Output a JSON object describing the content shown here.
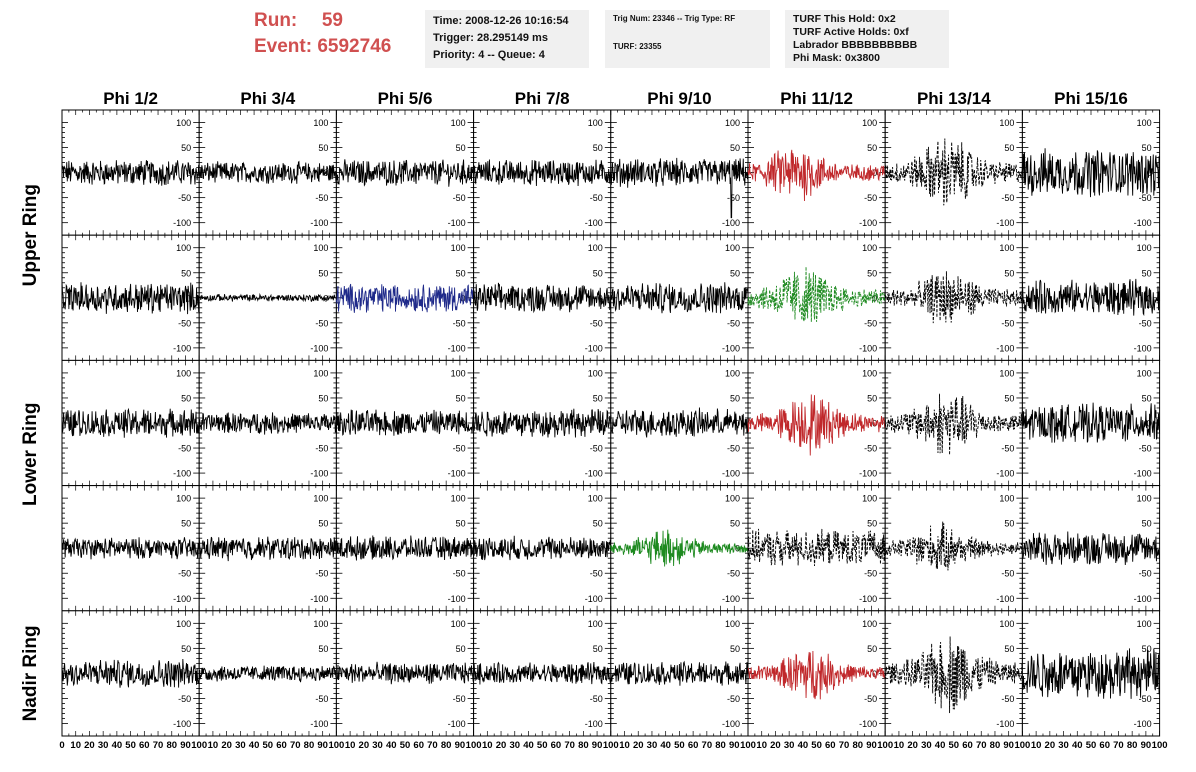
{
  "header": {
    "run_label": "Run:",
    "run_value": "59",
    "event_label": "Event:",
    "event_value": "6592746",
    "time": "Time: 2008-12-26 10:16:54",
    "trigger": "Trigger: 28.295149 ms",
    "priority": "Priority: 4 -- Queue: 4",
    "trig_num": "Trig Num: 23346 -- Trig Type: RF",
    "turf": "TURF: 23355",
    "turf_this_hold": "TURF This Hold: 0x2",
    "turf_active_holds": "TURF Active Holds: 0xf",
    "labrador": "Labrador BBBBBBBBBB",
    "phi_mask": "Phi Mask: 0x3800"
  },
  "chart_data": {
    "type": "line",
    "columns": [
      "Phi 1/2",
      "Phi 3/4",
      "Phi 5/6",
      "Phi 7/8",
      "Phi 9/10",
      "Phi 11/12",
      "Phi 13/14",
      "Phi 15/16"
    ],
    "rings": [
      "Upper Ring",
      "Lower Ring",
      "Nadir Ring"
    ],
    "xlim": [
      0,
      100
    ],
    "ylim": [
      -125,
      125
    ],
    "x_ticks": [
      "0",
      "10",
      "20",
      "30",
      "40",
      "50",
      "60",
      "70",
      "80",
      "90",
      "100"
    ],
    "y_ticks": [
      "100",
      "50",
      "0",
      "-50",
      "-100"
    ],
    "colors": {
      "default": "#000000",
      "red": "#c0282b",
      "blue": "#1f2a8a",
      "green": "#1e8a20"
    },
    "panels": [
      [
        {
          "amp": 22,
          "color": "default",
          "dashed": false
        },
        {
          "amp": 18,
          "color": "default",
          "dashed": false
        },
        {
          "amp": 22,
          "color": "default",
          "dashed": false
        },
        {
          "amp": 22,
          "color": "default",
          "dashed": false
        },
        {
          "amp": 24,
          "color": "default",
          "dashed": false,
          "spike": [
            88,
            -90
          ]
        },
        {
          "amp": 40,
          "color": "red",
          "dashed": false,
          "burst": 35
        },
        {
          "amp": 50,
          "color": "default",
          "dashed": true,
          "burst": 45
        },
        {
          "amp": 40,
          "color": "default",
          "dashed": false
        }
      ],
      [
        {
          "amp": 26,
          "color": "default",
          "dashed": false
        },
        {
          "amp": 6,
          "color": "default",
          "dashed": false
        },
        {
          "amp": 24,
          "color": "blue",
          "dashed": false
        },
        {
          "amp": 24,
          "color": "default",
          "dashed": false
        },
        {
          "amp": 26,
          "color": "default",
          "dashed": false
        },
        {
          "amp": 45,
          "color": "green",
          "dashed": true,
          "burst": 40
        },
        {
          "amp": 40,
          "color": "default",
          "dashed": true,
          "burst": 45
        },
        {
          "amp": 30,
          "color": "default",
          "dashed": false
        }
      ],
      [
        {
          "amp": 24,
          "color": "default",
          "dashed": false
        },
        {
          "amp": 18,
          "color": "default",
          "dashed": false
        },
        {
          "amp": 22,
          "color": "default",
          "dashed": false
        },
        {
          "amp": 24,
          "color": "default",
          "dashed": false
        },
        {
          "amp": 24,
          "color": "default",
          "dashed": false
        },
        {
          "amp": 42,
          "color": "red",
          "dashed": false,
          "burst": 45
        },
        {
          "amp": 45,
          "color": "default",
          "dashed": true,
          "burst": 45
        },
        {
          "amp": 32,
          "color": "default",
          "dashed": false
        }
      ],
      [
        {
          "amp": 18,
          "color": "default",
          "dashed": false
        },
        {
          "amp": 20,
          "color": "default",
          "dashed": false
        },
        {
          "amp": 20,
          "color": "default",
          "dashed": false
        },
        {
          "amp": 20,
          "color": "default",
          "dashed": false
        },
        {
          "amp": 26,
          "color": "green",
          "dashed": false,
          "burst": 40
        },
        {
          "amp": 30,
          "color": "default",
          "dashed": true
        },
        {
          "amp": 34,
          "color": "default",
          "dashed": true,
          "burst": 40
        },
        {
          "amp": 28,
          "color": "default",
          "dashed": false
        }
      ],
      [
        {
          "amp": 24,
          "color": "default",
          "dashed": false
        },
        {
          "amp": 14,
          "color": "default",
          "dashed": false
        },
        {
          "amp": 18,
          "color": "default",
          "dashed": false
        },
        {
          "amp": 18,
          "color": "default",
          "dashed": false
        },
        {
          "amp": 20,
          "color": "default",
          "dashed": false
        },
        {
          "amp": 36,
          "color": "red",
          "dashed": false,
          "burst": 45
        },
        {
          "amp": 55,
          "color": "default",
          "dashed": true,
          "burst": 48
        },
        {
          "amp": 42,
          "color": "default",
          "dashed": false
        }
      ]
    ]
  }
}
